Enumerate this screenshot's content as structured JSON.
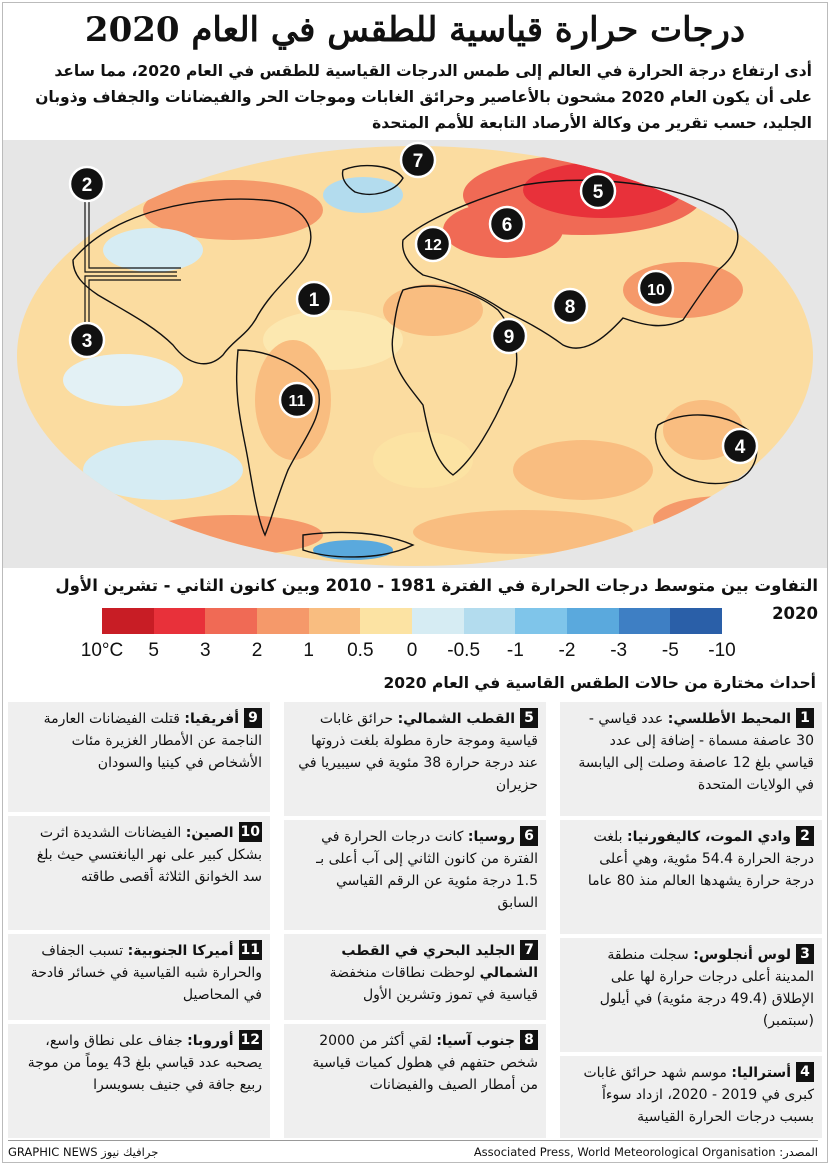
{
  "title": "درجات حرارة قياسية للطقس في العام 2020",
  "subtitle": "أدى ارتفاع درجة الحرارة في العالم إلى طمس الدرجات القياسية للطقس في العام 2020، مما ساعد على أن يكون العام 2020 مشحون بالأعاصير وحرائق الغابات وموجات الحر والفيضانات والجفاف وذوبان الجليد، حسب تقرير من وكالة الأرصاد التابعة للأمم المتحدة",
  "map": {
    "markers": [
      {
        "id": "1",
        "label": "1"
      },
      {
        "id": "2",
        "label": "2"
      },
      {
        "id": "3",
        "label": "3"
      },
      {
        "id": "4",
        "label": "4"
      },
      {
        "id": "5",
        "label": "5"
      },
      {
        "id": "6",
        "label": "6"
      },
      {
        "id": "7",
        "label": "7"
      },
      {
        "id": "8",
        "label": "8"
      },
      {
        "id": "9",
        "label": "9"
      },
      {
        "id": "10",
        "label": "10"
      },
      {
        "id": "11",
        "label": "11"
      },
      {
        "id": "12",
        "label": "12"
      }
    ]
  },
  "legend": {
    "title": "التفاوت بين متوسط درجات الحرارة في الفترة 1981 - 2010 وبين كانون الثاني - تشرين الأول 2020",
    "colors": [
      "#c81d25",
      "#e8313a",
      "#f06a55",
      "#f5996a",
      "#f9bd80",
      "#fce3a3",
      "#d6ecf3",
      "#b3dcee",
      "#7fc5ea",
      "#5aa9dd",
      "#3e7fc4",
      "#2a5fa8"
    ],
    "ticks": [
      "10°C",
      "5",
      "3",
      "2",
      "1",
      "0.5",
      "0",
      "-0.5",
      "-1",
      "-2",
      "-3",
      "-5",
      "-10"
    ]
  },
  "events_heading": "أحداث مختارة من حالات الطقس القاسية في العام 2020",
  "events": [
    {
      "num": "1",
      "label": "المحيط الأطلسي:",
      "text": "عدد قياسي - 30 عاصفة مسماة - إضافة إلى عدد قياسي بلغ 12 عاصفة وصلت إلى اليابسة في الولايات المتحدة"
    },
    {
      "num": "2",
      "label": "وادي الموت، كاليفورنيا:",
      "text": "بلغت درجة الحرارة 54.4 مئوية، وهي أعلى درجة حرارة يشهدها العالم منذ 80 عاما"
    },
    {
      "num": "3",
      "label": "لوس أنجلوس:",
      "text": "سجلت منطقة المدينة أعلى درجات حرارة لها على الإطلاق (49.4 درجة مئوية) في أيلول (سبتمبر)"
    },
    {
      "num": "4",
      "label": "أستراليا:",
      "text": "موسم شهد حرائق غابات كبرى في 2019 - 2020، ازداد سوءاً بسبب درجات الحرارة القياسية"
    },
    {
      "num": "5",
      "label": "القطب الشمالي:",
      "text": "حرائق غابات قياسية وموجة حارة مطولة بلغت ذروتها عند درجة حرارة 38 مئوية في سيبيريا في حزيران"
    },
    {
      "num": "6",
      "label": "روسيا:",
      "text": "كانت درجات الحرارة في الفترة من كانون الثاني إلى آب أعلى بـ 1.5 درجة مئوية عن الرقم القياسي السابق"
    },
    {
      "num": "7",
      "label": "الجليد البحري في القطب الشمالي",
      "text": "لوحظت نطاقات منخفضة قياسية في تموز وتشرين الأول"
    },
    {
      "num": "8",
      "label": "جنوب آسيا:",
      "text": "لقي أكثر من 2000 شخص حتفهم في هطول كميات قياسية من أمطار الصيف والفيضانات"
    },
    {
      "num": "9",
      "label": "أفريقيا:",
      "text": "قتلت الفيضانات العارمة الناجمة عن الأمطار الغزيرة مئات الأشخاص في كينيا والسودان"
    },
    {
      "num": "10",
      "label": "الصين:",
      "text": "الفيضانات الشديدة اثرت بشكل كبير على نهر اليانغتسي حيث بلغ سد الخوانق الثلاثة أقصى طاقته"
    },
    {
      "num": "11",
      "label": "أميركا الجنوبية:",
      "text": "تسبب الجفاف والحرارة شبه القياسية في خسائر فادحة في المحاصيل"
    },
    {
      "num": "12",
      "label": "أوروبا:",
      "text": "جفاف على نطاق واسع، يصحبه عدد قياسي بلغ 43 يوماً من موجة ربيع جافة في جنيف بسويسرا"
    }
  ],
  "footer": {
    "source": "المصدر: Associated Press, World Meteorological Organisation",
    "brand": "GRAPHIC NEWS جرافيك نيوز"
  }
}
